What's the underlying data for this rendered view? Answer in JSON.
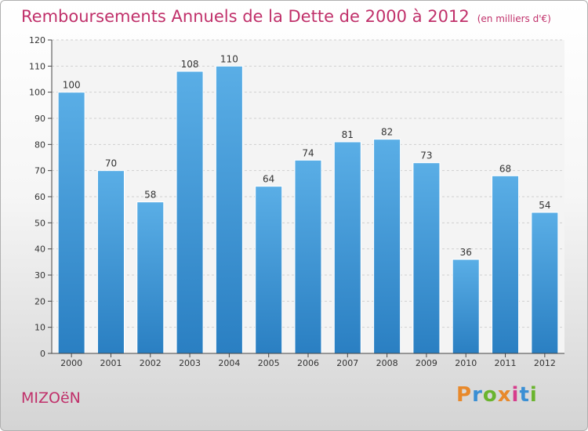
{
  "header": {
    "title": "Remboursements Annuels de la Dette de 2000 à 2012",
    "subtitle": "(en milliers d'€)"
  },
  "footer": {
    "town": "MIZOëN",
    "logo": "Proxiti"
  },
  "colors": {
    "title": "#c0306a",
    "bar_light": "#5aaee6",
    "bar_dark": "#2a7fc2",
    "logo_letters": [
      "#e8892b",
      "#3a8fd4",
      "#6ab42e",
      "#e8892b",
      "#d63c8c",
      "#3a8fd4",
      "#6ab42e"
    ]
  },
  "chart_data": {
    "type": "bar",
    "title": "Remboursements Annuels de la Dette de 2000 à 2012",
    "xlabel": "",
    "ylabel": "en milliers d'€",
    "categories": [
      "2000",
      "2001",
      "2002",
      "2003",
      "2004",
      "2005",
      "2006",
      "2007",
      "2008",
      "2009",
      "2010",
      "2011",
      "2012"
    ],
    "values": [
      100,
      70,
      58,
      108,
      110,
      64,
      74,
      81,
      82,
      73,
      36,
      68,
      54
    ],
    "ylim": [
      0,
      120
    ],
    "yticks": [
      0,
      10,
      20,
      30,
      40,
      50,
      60,
      70,
      80,
      90,
      100,
      110,
      120
    ],
    "grid": true
  }
}
